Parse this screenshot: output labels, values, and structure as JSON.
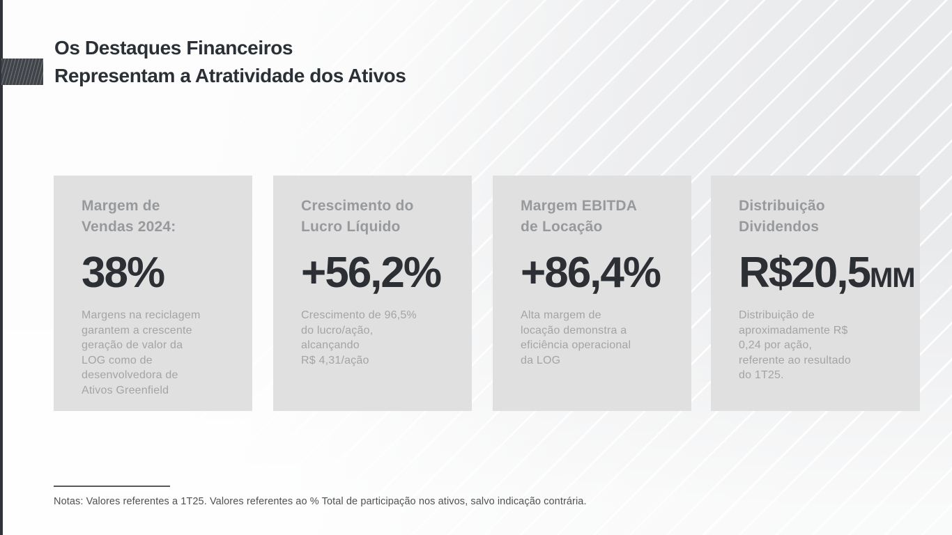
{
  "slide": {
    "title_line1": "Os Destaques Financeiros",
    "title_line2": "Representam a Atratividade dos Ativos",
    "cards": [
      {
        "title": "Margem de\nVendas 2024:",
        "value": "38%",
        "value_suffix": "",
        "description": "Margens na reciclagem\ngarantem a crescente\ngeração de valor da\nLOG como de\ndesenvolvedora de\nAtivos Greenfield"
      },
      {
        "title": "Crescimento do\nLucro Líquido",
        "value": "+56,2%",
        "value_suffix": "",
        "description": "Crescimento de 96,5%\ndo lucro/ação,\nalcançando\nR$ 4,31/ação"
      },
      {
        "title": "Margem EBITDA\nde Locação",
        "value": "+86,4%",
        "value_suffix": "",
        "description": "Alta margem de\nlocação demonstra a\neficiência operacional\nda LOG"
      },
      {
        "title": "Distribuição\nDividendos",
        "value": "R$20,5",
        "value_suffix": "MM",
        "description": "Distribuição de\naproximadamente R$\n0,24 por ação,\nreferente ao resultado\ndo 1T25."
      }
    ],
    "footnote": "Notas: Valores referentes a 1T25. Valores referentes ao % Total de participação nos ativos, salvo indicação contrária.",
    "colors": {
      "accent_dark": "#30343a",
      "title_text": "#2b2f36",
      "card_background": "#e0e0e0",
      "card_title_text": "#97999c",
      "card_value_text": "#2c2f33",
      "card_description_text": "#a2a4a6",
      "footnote_text": "#4e5154",
      "background_stripe": "#e9eaec"
    }
  }
}
